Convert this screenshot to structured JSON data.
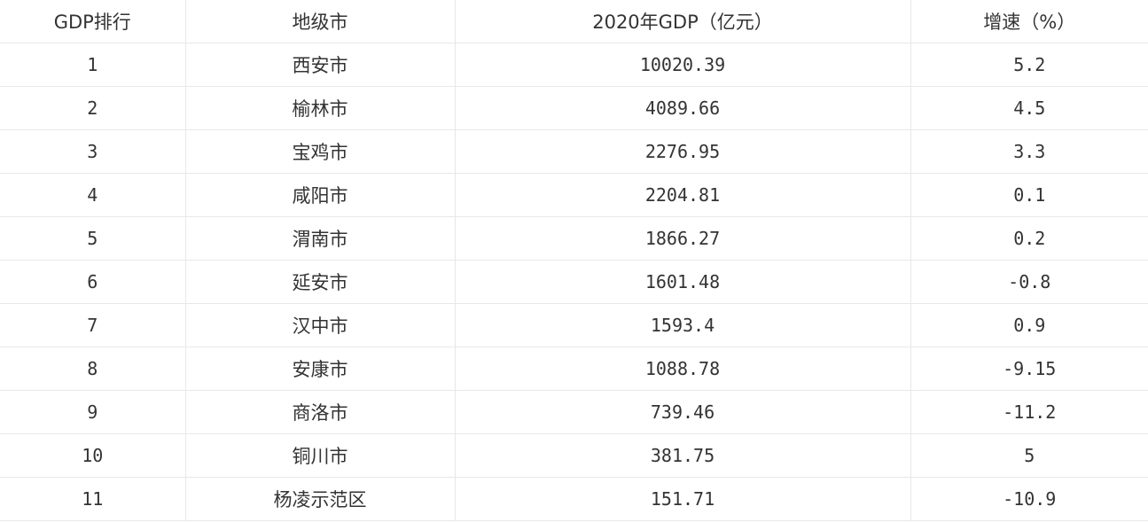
{
  "table": {
    "headers": [
      "GDP排行",
      "地级市",
      "2020年GDP（亿元）",
      "增速（%）"
    ],
    "rows": [
      [
        "1",
        "西安市",
        "10020.39",
        "5.2"
      ],
      [
        "2",
        "榆林市",
        "4089.66",
        "4.5"
      ],
      [
        "3",
        "宝鸡市",
        "2276.95",
        "3.3"
      ],
      [
        "4",
        "咸阳市",
        "2204.81",
        "0.1"
      ],
      [
        "5",
        "渭南市",
        "1866.27",
        "0.2"
      ],
      [
        "6",
        "延安市",
        "1601.48",
        "-0.8"
      ],
      [
        "7",
        "汉中市",
        "1593.4",
        "0.9"
      ],
      [
        "8",
        "安康市",
        "1088.78",
        "-9.15"
      ],
      [
        "9",
        "商洛市",
        "739.46",
        "-11.2"
      ],
      [
        "10",
        "铜川市",
        "381.75",
        "5"
      ],
      [
        "11",
        "杨凌示范区",
        "151.71",
        "-10.9"
      ]
    ]
  }
}
